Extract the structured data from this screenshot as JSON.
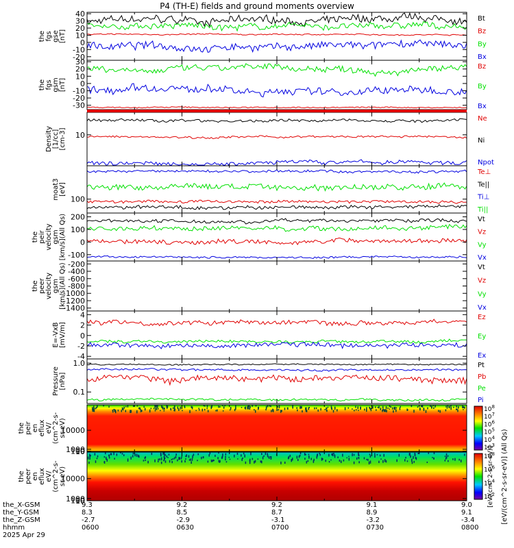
{
  "title": "P4 (TH-E) fields and ground moments overview",
  "colors": {
    "black": "#000000",
    "red": "#e00000",
    "green": "#00e000",
    "blue": "#0000e0"
  },
  "chart_data": [
    {
      "type": "line",
      "id": "fgs_gse",
      "ylabel": [
        "the",
        "fgs",
        "gse",
        "[nT]"
      ],
      "yticks": [
        40,
        30,
        20,
        10,
        0,
        -10,
        -20
      ],
      "ylim": [
        -25,
        42
      ],
      "series": [
        {
          "name": "Bt",
          "color": "black",
          "base": 30,
          "amp": 6
        },
        {
          "name": "Bz",
          "color": "red",
          "base": 11,
          "amp": 1
        },
        {
          "name": "By",
          "color": "green",
          "base": 22,
          "amp": 5
        },
        {
          "name": "Bx",
          "color": "blue",
          "base": -5,
          "amp": 6
        }
      ]
    },
    {
      "type": "line",
      "id": "fgs_gsm",
      "ylabel": [
        "the",
        "fgs",
        "gsm",
        "[nT]"
      ],
      "yticks": [
        30,
        20,
        10,
        0,
        -10,
        -20,
        -30
      ],
      "ylim": [
        -36,
        32
      ],
      "series": [
        {
          "name": "Bz",
          "color": "red",
          "base": -33,
          "amp": 0.8
        },
        {
          "name": "By",
          "color": "green",
          "base": 20,
          "amp": 5
        },
        {
          "name": "Bx",
          "color": "blue",
          "base": -10,
          "amp": 6
        }
      ]
    },
    {
      "type": "line",
      "id": "density",
      "log": true,
      "ylabel": [
        "Density",
        "[1/cc]",
        "[cm-3]"
      ],
      "yticks": [
        10
      ],
      "ylim": [
        2.2,
        30
      ],
      "series": [
        {
          "name": "Ne",
          "color": "red",
          "base": 9,
          "amp": 0.5
        },
        {
          "name": "Ni",
          "color": "black",
          "base": 20,
          "amp": 1.5
        },
        {
          "name": "Npot",
          "color": "blue",
          "base": 2.6,
          "amp": 0.3
        }
      ]
    },
    {
      "type": "line",
      "id": "temp",
      "log": true,
      "ylabel": [
        "moat3",
        "[eV]"
      ],
      "yticks": [
        100
      ],
      "ylim": [
        55,
        420
      ],
      "series": [
        {
          "name": "Te⊥",
          "color": "red",
          "base": 90,
          "amp": 6
        },
        {
          "name": "Te||",
          "color": "black",
          "base": 70,
          "amp": 6
        },
        {
          "name": "Ti⊥",
          "color": "blue",
          "base": 330,
          "amp": 20
        },
        {
          "name": "Ti||",
          "color": "green",
          "base": 170,
          "amp": 25
        }
      ]
    },
    {
      "type": "line",
      "id": "peir_vel",
      "ylabel": [
        "the",
        "peir",
        "velocity",
        "gsm",
        "[km/s](All Qs)"
      ],
      "yticks": [
        200,
        100,
        0,
        -100
      ],
      "ylim": [
        -150,
        230
      ],
      "series": [
        {
          "name": "Vt",
          "color": "black",
          "base": 170,
          "amp": 15
        },
        {
          "name": "Vz",
          "color": "red",
          "base": 10,
          "amp": 20
        },
        {
          "name": "Vy",
          "color": "green",
          "base": 110,
          "amp": 20
        },
        {
          "name": "Vx",
          "color": "blue",
          "base": -120,
          "amp": 8
        }
      ]
    },
    {
      "type": "line",
      "id": "peer_vel",
      "ylabel": [
        "the",
        "peer",
        "velocity",
        "gsm",
        "[km/s](All Qs)"
      ],
      "yticks": [
        -200,
        -400,
        -600,
        -800,
        -1000,
        -1200,
        -1400
      ],
      "ylim": [
        -1480,
        -120
      ],
      "series": [
        {
          "name": "Vt",
          "color": "black"
        },
        {
          "name": "Vz",
          "color": "red"
        },
        {
          "name": "Vy",
          "color": "green"
        },
        {
          "name": "Vx",
          "color": "blue"
        }
      ]
    },
    {
      "type": "line",
      "id": "efield",
      "ylabel": [
        "E=-VxB",
        "[mV/m]"
      ],
      "yticks": [
        4,
        2,
        0,
        -2,
        -4
      ],
      "ylim": [
        -4.5,
        4.7
      ],
      "series": [
        {
          "name": "Ez",
          "color": "red",
          "base": 2.6,
          "amp": 0.5
        },
        {
          "name": "Ey",
          "color": "green",
          "base": -1.2,
          "amp": 0.3
        },
        {
          "name": "Ex",
          "color": "blue",
          "base": -1.8,
          "amp": 0.5
        }
      ]
    },
    {
      "type": "line",
      "id": "pressure",
      "log": true,
      "ylabel": [
        "Pressure",
        "[nPa]"
      ],
      "yticks": [
        1.0,
        0.1
      ],
      "ylim": [
        0.04,
        1.4
      ],
      "series": [
        {
          "name": "Pt",
          "color": "black",
          "base": 0.9,
          "amp": 0.05
        },
        {
          "name": "Pb",
          "color": "red",
          "base": 0.3,
          "amp": 0.08
        },
        {
          "name": "Pe",
          "color": "green",
          "base": 0.055,
          "amp": 0.005
        },
        {
          "name": "Pi",
          "color": "blue",
          "base": 0.6,
          "amp": 0.05
        }
      ]
    },
    {
      "type": "heatmap",
      "id": "peir_spec",
      "ylabel": [
        "the",
        "peir",
        "en",
        "eflux",
        "eV/",
        "(cm^2-s-",
        "sr-eV)"
      ],
      "yticks": [
        10000,
        1000,
        100,
        10
      ],
      "ylim": [
        7,
        22000
      ],
      "colorbar": {
        "ticks": [
          "10^8",
          "10^7",
          "10^6",
          "10^5",
          "10^4",
          "10^3"
        ]
      }
    },
    {
      "type": "heatmap",
      "id": "peer_spec",
      "ylabel": [
        "the",
        "peer",
        "en",
        "eflux",
        "eV/",
        "(cm^2-s-",
        "sr-eV)"
      ],
      "yticks": [
        10000,
        1000,
        100,
        10
      ],
      "ylim": [
        7,
        22000
      ],
      "colorbar": {
        "ticks": [
          "10^8",
          "10^6",
          "10^4",
          "10^2"
        ]
      }
    }
  ],
  "colorbar_label": "[eV/(cm^2-s-sr-eV)] (All Qs)",
  "colorbar_label_top": "[eV/(cm^2-s-sr-eV)]",
  "xaxis": {
    "row_labels": [
      "the_X-GSM",
      "the_Y-GSM",
      "the_Z-GSM",
      "hhmm",
      "2025 Apr 29"
    ],
    "ticks": [
      {
        "x": "9.3",
        "y": "8.3",
        "z": "-2.7",
        "time": "0600"
      },
      {
        "x": "9.2",
        "y": "8.5",
        "z": "-2.9",
        "time": "0630"
      },
      {
        "x": "9.2",
        "y": "8.7",
        "z": "-3.1",
        "time": "0700"
      },
      {
        "x": "9.1",
        "y": "8.9",
        "z": "-3.2",
        "time": "0730"
      },
      {
        "x": "9.0",
        "y": "9.1",
        "z": "-3.4",
        "time": "0800"
      }
    ]
  }
}
